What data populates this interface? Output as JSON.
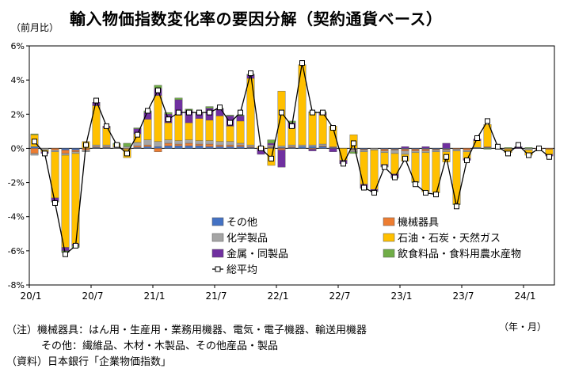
{
  "header": {
    "title": "輸入物価指数変化率の要因分解（契約通貨ベース）",
    "unit_left": "（前月比）",
    "unit_right": "（年・月）"
  },
  "notes": {
    "line1": "（注）機械器具：はん用・生産用・業務用機器、電気・電子機器、輸送用機器",
    "line2": "その他：繊維品、木材・木製品、その他産品・製品",
    "line3": "（資料）日本銀行「企業物価指数」"
  },
  "chart_data": {
    "type": "bar",
    "stacked": true,
    "ylim": [
      -8,
      6
    ],
    "yticks": [
      "6%",
      "4%",
      "2%",
      "0%",
      "-2%",
      "-4%",
      "-6%",
      "-8%"
    ],
    "xtick_labels": [
      {
        "label": "20/1",
        "index": 0
      },
      {
        "label": "20/7",
        "index": 6
      },
      {
        "label": "21/1",
        "index": 12
      },
      {
        "label": "21/7",
        "index": 18
      },
      {
        "label": "22/1",
        "index": 24
      },
      {
        "label": "22/7",
        "index": 30
      },
      {
        "label": "23/1",
        "index": 36
      },
      {
        "label": "23/7",
        "index": 42
      },
      {
        "label": "24/1",
        "index": 48
      }
    ],
    "categories": [
      "2020-01",
      "2020-02",
      "2020-03",
      "2020-04",
      "2020-05",
      "2020-06",
      "2020-07",
      "2020-08",
      "2020-09",
      "2020-10",
      "2020-11",
      "2020-12",
      "2021-01",
      "2021-02",
      "2021-03",
      "2021-04",
      "2021-05",
      "2021-06",
      "2021-07",
      "2021-08",
      "2021-09",
      "2021-10",
      "2021-11",
      "2021-12",
      "2022-01",
      "2022-02",
      "2022-03",
      "2022-04",
      "2022-05",
      "2022-06",
      "2022-07",
      "2022-08",
      "2022-09",
      "2022-10",
      "2022-11",
      "2022-12",
      "2023-01",
      "2023-02",
      "2023-03",
      "2023-04",
      "2023-05",
      "2023-06",
      "2023-07",
      "2023-08",
      "2023-09",
      "2023-10",
      "2023-11",
      "2023-12",
      "2024-01",
      "2024-02",
      "2024-03"
    ],
    "legend": {
      "placement": "inside-bottom"
    },
    "series": [
      {
        "name": "その他",
        "color": "#4472C4",
        "values": [
          0.1,
          0.0,
          0.0,
          -0.1,
          -0.1,
          0.0,
          0.05,
          0.05,
          0.0,
          0.0,
          0.05,
          0.1,
          0.1,
          0.15,
          0.15,
          0.15,
          0.15,
          0.1,
          0.1,
          0.1,
          0.1,
          0.05,
          0.0,
          0.05,
          0.05,
          0.05,
          0.1,
          0.1,
          0.1,
          0.05,
          0.0,
          -0.05,
          -0.05,
          0.0,
          -0.05,
          -0.05,
          -0.05,
          -0.05,
          -0.05,
          -0.05,
          -0.05,
          0.0,
          0.0,
          0.05,
          0.05,
          0.0,
          0.0,
          0.0,
          0.0,
          0.0,
          0.0
        ]
      },
      {
        "name": "機械器具",
        "color": "#ED7D31",
        "values": [
          -0.3,
          0.0,
          -0.1,
          -0.2,
          -0.1,
          -0.1,
          0.05,
          0.05,
          0.0,
          -0.05,
          0.1,
          0.1,
          -0.2,
          0.15,
          0.1,
          0.15,
          0.1,
          0.15,
          0.1,
          0.1,
          0.1,
          0.05,
          -0.05,
          0.05,
          -0.1,
          0.05,
          0.0,
          -0.05,
          0.05,
          0.05,
          0.0,
          -0.05,
          -0.05,
          0.0,
          -0.1,
          -0.05,
          -0.1,
          -0.1,
          -0.1,
          -0.05,
          -0.05,
          -0.05,
          -0.1,
          0.0,
          0.05,
          0.0,
          -0.05,
          0.0,
          0.0,
          -0.05,
          -0.05
        ]
      },
      {
        "name": "化学製品",
        "color": "#A5A5A5",
        "values": [
          -0.1,
          -0.1,
          -0.1,
          -0.1,
          -0.1,
          -0.1,
          0.1,
          0.1,
          0.1,
          0.1,
          0.2,
          0.3,
          0.3,
          0.2,
          0.2,
          0.2,
          0.2,
          0.2,
          0.2,
          0.2,
          0.1,
          0.1,
          0.0,
          0.1,
          0.1,
          0.1,
          0.1,
          0.1,
          0.1,
          0.0,
          0.0,
          -0.1,
          -0.1,
          -0.1,
          -0.1,
          -0.2,
          -0.2,
          -0.1,
          -0.1,
          -0.1,
          -0.1,
          -0.1,
          -0.1,
          0.0,
          0.0,
          0.0,
          0.0,
          0.0,
          -0.1,
          0.0,
          0.0
        ]
      },
      {
        "name": "石油・石炭・天然ガス",
        "color": "#FFC000",
        "values": [
          0.7,
          -0.1,
          -2.7,
          -5.4,
          -5.3,
          0.4,
          2.3,
          1.0,
          0.1,
          -0.5,
          0.5,
          1.2,
          2.7,
          1.0,
          1.5,
          1.0,
          1.3,
          1.2,
          1.5,
          0.9,
          1.3,
          3.9,
          0.1,
          -1.0,
          3.2,
          1.0,
          4.7,
          1.9,
          1.7,
          1.2,
          -0.7,
          0.8,
          -1.9,
          -2.3,
          -0.7,
          -1.2,
          -0.4,
          -1.7,
          -2.3,
          -2.4,
          -0.6,
          -3.1,
          -0.4,
          0.4,
          1.3,
          0.0,
          -0.2,
          0.0,
          -0.3,
          0.0,
          -0.3
        ]
      },
      {
        "name": "金属・同製品",
        "color": "#7030A0",
        "values": [
          0.0,
          -0.1,
          -0.2,
          -0.2,
          -0.1,
          0.0,
          0.2,
          0.1,
          0.0,
          0.0,
          0.3,
          0.4,
          0.4,
          0.5,
          0.9,
          0.7,
          0.3,
          0.7,
          0.4,
          0.6,
          0.3,
          0.2,
          -0.3,
          0.1,
          -1.0,
          0.3,
          0.0,
          -0.1,
          0.1,
          -0.2,
          -0.2,
          0.0,
          -0.2,
          -0.1,
          -0.1,
          -0.2,
          0.1,
          0.0,
          0.1,
          0.0,
          0.3,
          0.0,
          -0.1,
          0.1,
          0.0,
          0.0,
          0.0,
          0.1,
          0.0,
          0.0,
          -0.1
        ]
      },
      {
        "name": "飲食料品・食料用農水産物",
        "color": "#70AD47",
        "values": [
          0.05,
          0.0,
          -0.05,
          -0.1,
          -0.1,
          0.0,
          0.0,
          0.0,
          0.1,
          0.2,
          0.05,
          0.1,
          0.2,
          0.1,
          0.1,
          0.1,
          0.05,
          0.1,
          0.05,
          0.05,
          0.05,
          0.05,
          0.0,
          0.2,
          0.0,
          0.1,
          0.0,
          0.05,
          0.1,
          0.0,
          0.0,
          -0.1,
          -0.05,
          -0.05,
          -0.05,
          -0.05,
          0.0,
          -0.05,
          0.0,
          0.0,
          0.0,
          -0.05,
          0.0,
          0.0,
          -0.05,
          0.0,
          0.05,
          0.0,
          0.05,
          0.0,
          0.0
        ]
      },
      {
        "name": "総平均",
        "color": "#000000",
        "kind": "line",
        "values": [
          0.4,
          -0.3,
          -3.2,
          -6.2,
          -5.7,
          0.2,
          2.8,
          1.3,
          0.2,
          -0.3,
          0.8,
          2.2,
          3.4,
          1.7,
          2.1,
          2.1,
          2.1,
          2.1,
          2.4,
          1.5,
          2.1,
          4.4,
          0.0,
          -0.6,
          2.1,
          1.3,
          5.0,
          2.1,
          2.1,
          1.2,
          -0.9,
          0.3,
          -2.3,
          -2.6,
          -1.1,
          -1.7,
          -0.6,
          -2.1,
          -2.6,
          -2.7,
          -0.5,
          -3.4,
          -0.7,
          0.6,
          1.6,
          0.1,
          -0.3,
          0.2,
          -0.4,
          0.0,
          -0.5
        ]
      }
    ]
  }
}
